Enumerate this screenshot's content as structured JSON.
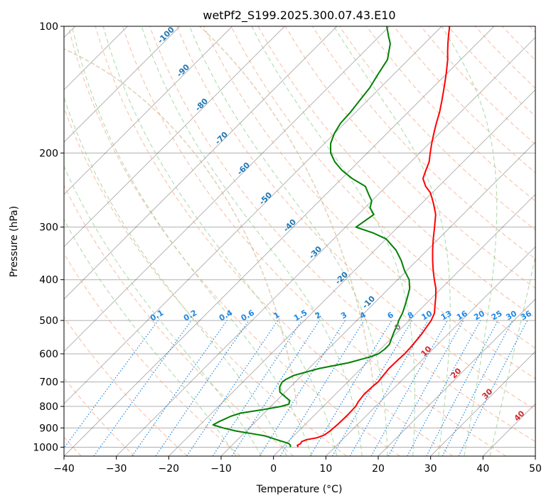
{
  "chart_data": {
    "type": "line",
    "subtype": "skew-t log-p diagram",
    "title": "wetPf2_S199.2025.300.07.43.E10",
    "xlabel": "Temperature (°C)",
    "ylabel": "Pressure (hPa)",
    "xlim": [
      -40,
      50
    ],
    "ylim": [
      1050,
      100
    ],
    "x_ticks": [
      -40,
      -30,
      -20,
      -10,
      0,
      10,
      20,
      30,
      40,
      50
    ],
    "y_ticks": [
      100,
      200,
      300,
      400,
      500,
      600,
      700,
      800,
      900,
      1000
    ],
    "grid": true,
    "series": [
      {
        "name": "Temperature",
        "color": "#ff0000",
        "points": [
          [
            1000,
            3.0
          ],
          [
            990,
            2.5
          ],
          [
            980,
            2.8
          ],
          [
            970,
            2.6
          ],
          [
            960,
            3.2
          ],
          [
            950,
            4.8
          ],
          [
            935,
            5.7
          ],
          [
            915,
            6.0
          ],
          [
            880,
            6.2
          ],
          [
            840,
            6.3
          ],
          [
            800,
            6.2
          ],
          [
            780,
            5.8
          ],
          [
            750,
            5.5
          ],
          [
            720,
            5.6
          ],
          [
            700,
            5.8
          ],
          [
            680,
            5.6
          ],
          [
            650,
            5.3
          ],
          [
            620,
            5.4
          ],
          [
            600,
            5.5
          ],
          [
            580,
            5.4
          ],
          [
            560,
            5.2
          ],
          [
            540,
            5.0
          ],
          [
            520,
            4.6
          ],
          [
            500,
            4.2
          ],
          [
            480,
            3.4
          ],
          [
            460,
            2.0
          ],
          [
            440,
            0.6
          ],
          [
            420,
            -1.0
          ],
          [
            400,
            -3.0
          ],
          [
            380,
            -5.0
          ],
          [
            360,
            -7.0
          ],
          [
            340,
            -9.0
          ],
          [
            320,
            -11.0
          ],
          [
            300,
            -13.0
          ],
          [
            280,
            -15.2
          ],
          [
            265,
            -17.5
          ],
          [
            255,
            -19.2
          ],
          [
            248,
            -20.5
          ],
          [
            240,
            -22.5
          ],
          [
            230,
            -24.5
          ],
          [
            220,
            -25.5
          ],
          [
            210,
            -26.5
          ],
          [
            200,
            -28.0
          ],
          [
            190,
            -29.5
          ],
          [
            180,
            -31.0
          ],
          [
            170,
            -32.5
          ],
          [
            160,
            -34.0
          ],
          [
            150,
            -35.8
          ],
          [
            140,
            -37.8
          ],
          [
            130,
            -40.0
          ],
          [
            120,
            -42.5
          ],
          [
            115,
            -44.0
          ],
          [
            110,
            -45.5
          ],
          [
            105,
            -47.0
          ],
          [
            100,
            -48.5
          ]
        ]
      },
      {
        "name": "Dewpoint",
        "color": "#008000",
        "points": [
          [
            1000,
            1.5
          ],
          [
            990,
            1.2
          ],
          [
            980,
            0.5
          ],
          [
            970,
            -1.0
          ],
          [
            960,
            -2.5
          ],
          [
            950,
            -4.0
          ],
          [
            940,
            -5.5
          ],
          [
            930,
            -8.0
          ],
          [
            915,
            -12.0
          ],
          [
            900,
            -15.0
          ],
          [
            885,
            -17.5
          ],
          [
            870,
            -17.0
          ],
          [
            860,
            -16.5
          ],
          [
            845,
            -15.8
          ],
          [
            830,
            -14.5
          ],
          [
            815,
            -11.0
          ],
          [
            800,
            -8.0
          ],
          [
            790,
            -7.0
          ],
          [
            775,
            -7.5
          ],
          [
            760,
            -9.0
          ],
          [
            740,
            -11.0
          ],
          [
            720,
            -12.0
          ],
          [
            700,
            -12.5
          ],
          [
            690,
            -12.3
          ],
          [
            675,
            -11.5
          ],
          [
            650,
            -8.0
          ],
          [
            630,
            -3.5
          ],
          [
            610,
            -0.5
          ],
          [
            600,
            0.5
          ],
          [
            585,
            0.8
          ],
          [
            570,
            0.8
          ],
          [
            550,
            0.0
          ],
          [
            530,
            -0.8
          ],
          [
            510,
            -1.5
          ],
          [
            500,
            -2.0
          ],
          [
            480,
            -2.7
          ],
          [
            460,
            -3.7
          ],
          [
            440,
            -4.8
          ],
          [
            420,
            -6.0
          ],
          [
            400,
            -7.8
          ],
          [
            380,
            -10.5
          ],
          [
            360,
            -13.0
          ],
          [
            340,
            -16.0
          ],
          [
            320,
            -20.0
          ],
          [
            310,
            -23.5
          ],
          [
            300,
            -28.0
          ],
          [
            290,
            -27.5
          ],
          [
            280,
            -27.0
          ],
          [
            270,
            -29.0
          ],
          [
            260,
            -30.0
          ],
          [
            250,
            -32.0
          ],
          [
            240,
            -34.0
          ],
          [
            230,
            -38.0
          ],
          [
            220,
            -41.5
          ],
          [
            210,
            -44.5
          ],
          [
            200,
            -47.0
          ],
          [
            190,
            -48.8
          ],
          [
            180,
            -50.0
          ],
          [
            170,
            -50.8
          ],
          [
            160,
            -51.0
          ],
          [
            150,
            -51.5
          ],
          [
            140,
            -52.0
          ],
          [
            130,
            -53.0
          ],
          [
            120,
            -54.0
          ],
          [
            110,
            -56.5
          ],
          [
            105,
            -58.5
          ],
          [
            100,
            -60.5
          ]
        ]
      }
    ],
    "isotherm_labels": [
      "-100",
      "-90",
      "-80",
      "-70",
      "-60",
      "-50",
      "-40",
      "-30",
      "-20",
      "-10",
      "0",
      "10",
      "20",
      "30",
      "40"
    ],
    "mixing_ratio_labels": [
      "0.1",
      "0.2",
      "0.4",
      "0.6",
      "1",
      "1.5",
      "2",
      "3",
      "4",
      "6",
      "8",
      "10",
      "13",
      "16",
      "20",
      "25",
      "30",
      "36"
    ],
    "dry_adiabat_label_colors": {
      "cold": "#1f77b4",
      "zero": "#7f7f7f",
      "warm": "#d62728"
    },
    "colors": {
      "grid": "#b0b0b0",
      "isotherm": "#000000",
      "dry_adiabat": "#f4a582",
      "moist_adiabat": "#91cf91",
      "mixing_ratio": "#1e88e5",
      "curved_guides": "#d2b48c"
    }
  }
}
